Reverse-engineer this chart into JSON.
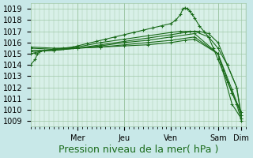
{
  "bg_color": "#c8e8e8",
  "plot_bg_color": "#d8f0e8",
  "grid_color": "#a0c8a8",
  "line_color": "#1a6b1a",
  "marker_color": "#1a6b1a",
  "ylim": [
    1008.5,
    1019.5
  ],
  "yticks": [
    1009,
    1010,
    1011,
    1012,
    1013,
    1014,
    1015,
    1016,
    1017,
    1018,
    1019
  ],
  "xlabel": "Pression niveau de la mer( hPa )",
  "xlabel_fontsize": 9,
  "tick_fontsize": 7,
  "day_labels": [
    "Mer",
    "Jeu",
    "Ven",
    "Sam",
    "Dim"
  ],
  "day_positions": [
    1.0,
    2.0,
    3.0,
    4.0,
    4.5
  ],
  "xlim": [
    0,
    4.6
  ],
  "lines": [
    {
      "x": [
        0,
        0.1,
        0.15,
        0.2,
        0.3,
        0.5,
        0.7,
        0.9,
        1.0,
        1.2,
        1.4,
        1.6,
        1.8,
        2.0,
        2.2,
        2.4,
        2.6,
        2.8,
        3.0,
        3.1,
        3.2,
        3.25,
        3.3,
        3.35,
        3.4,
        3.45,
        3.5,
        3.6,
        3.7,
        3.8,
        3.9,
        4.0,
        4.1,
        4.2,
        4.3,
        4.4,
        4.5
      ],
      "y": [
        1014.0,
        1014.5,
        1015.0,
        1015.2,
        1015.3,
        1015.4,
        1015.5,
        1015.6,
        1015.7,
        1015.9,
        1016.1,
        1016.3,
        1016.5,
        1016.7,
        1016.9,
        1017.1,
        1017.3,
        1017.5,
        1017.7,
        1018.0,
        1018.5,
        1019.0,
        1019.1,
        1019.0,
        1018.8,
        1018.5,
        1018.2,
        1017.5,
        1017.0,
        1016.5,
        1015.5,
        1014.5,
        1013.5,
        1012.5,
        1011.5,
        1010.5,
        1009.0
      ]
    },
    {
      "x": [
        0,
        0.1,
        0.2,
        0.5,
        1.0,
        1.5,
        2.0,
        2.5,
        3.0,
        3.2,
        3.4,
        3.5,
        3.6,
        3.8,
        4.0,
        4.2,
        4.4,
        4.5
      ],
      "y": [
        1015.0,
        1015.1,
        1015.2,
        1015.4,
        1015.6,
        1016.0,
        1016.3,
        1016.6,
        1016.9,
        1017.0,
        1017.0,
        1017.0,
        1017.0,
        1016.8,
        1016.0,
        1014.0,
        1012.0,
        1009.2
      ]
    },
    {
      "x": [
        0,
        0.5,
        1.0,
        1.5,
        2.0,
        2.5,
        3.0,
        3.3,
        3.5,
        3.8,
        4.0,
        4.2,
        4.4,
        4.5
      ],
      "y": [
        1015.2,
        1015.3,
        1015.5,
        1015.8,
        1016.1,
        1016.4,
        1016.7,
        1016.9,
        1017.0,
        1016.5,
        1015.5,
        1014.0,
        1012.0,
        1009.5
      ]
    },
    {
      "x": [
        0,
        0.5,
        1.0,
        1.5,
        2.0,
        2.5,
        3.0,
        3.5,
        4.0,
        4.3,
        4.5
      ],
      "y": [
        1015.3,
        1015.3,
        1015.5,
        1015.7,
        1016.0,
        1016.2,
        1016.5,
        1016.8,
        1015.0,
        1010.5,
        1009.2
      ]
    },
    {
      "x": [
        0,
        0.5,
        1.0,
        1.5,
        2.0,
        2.5,
        3.0,
        3.5,
        4.0,
        4.3,
        4.5
      ],
      "y": [
        1015.5,
        1015.4,
        1015.5,
        1015.6,
        1015.8,
        1016.0,
        1016.2,
        1016.5,
        1015.0,
        1011.5,
        1009.8
      ]
    },
    {
      "x": [
        0,
        0.5,
        1.0,
        1.5,
        2.0,
        2.5,
        3.0,
        3.3,
        3.5,
        4.0,
        4.3,
        4.5
      ],
      "y": [
        1015.6,
        1015.5,
        1015.5,
        1015.6,
        1015.7,
        1015.8,
        1016.0,
        1016.2,
        1016.3,
        1015.0,
        1011.8,
        1009.5
      ]
    }
  ]
}
